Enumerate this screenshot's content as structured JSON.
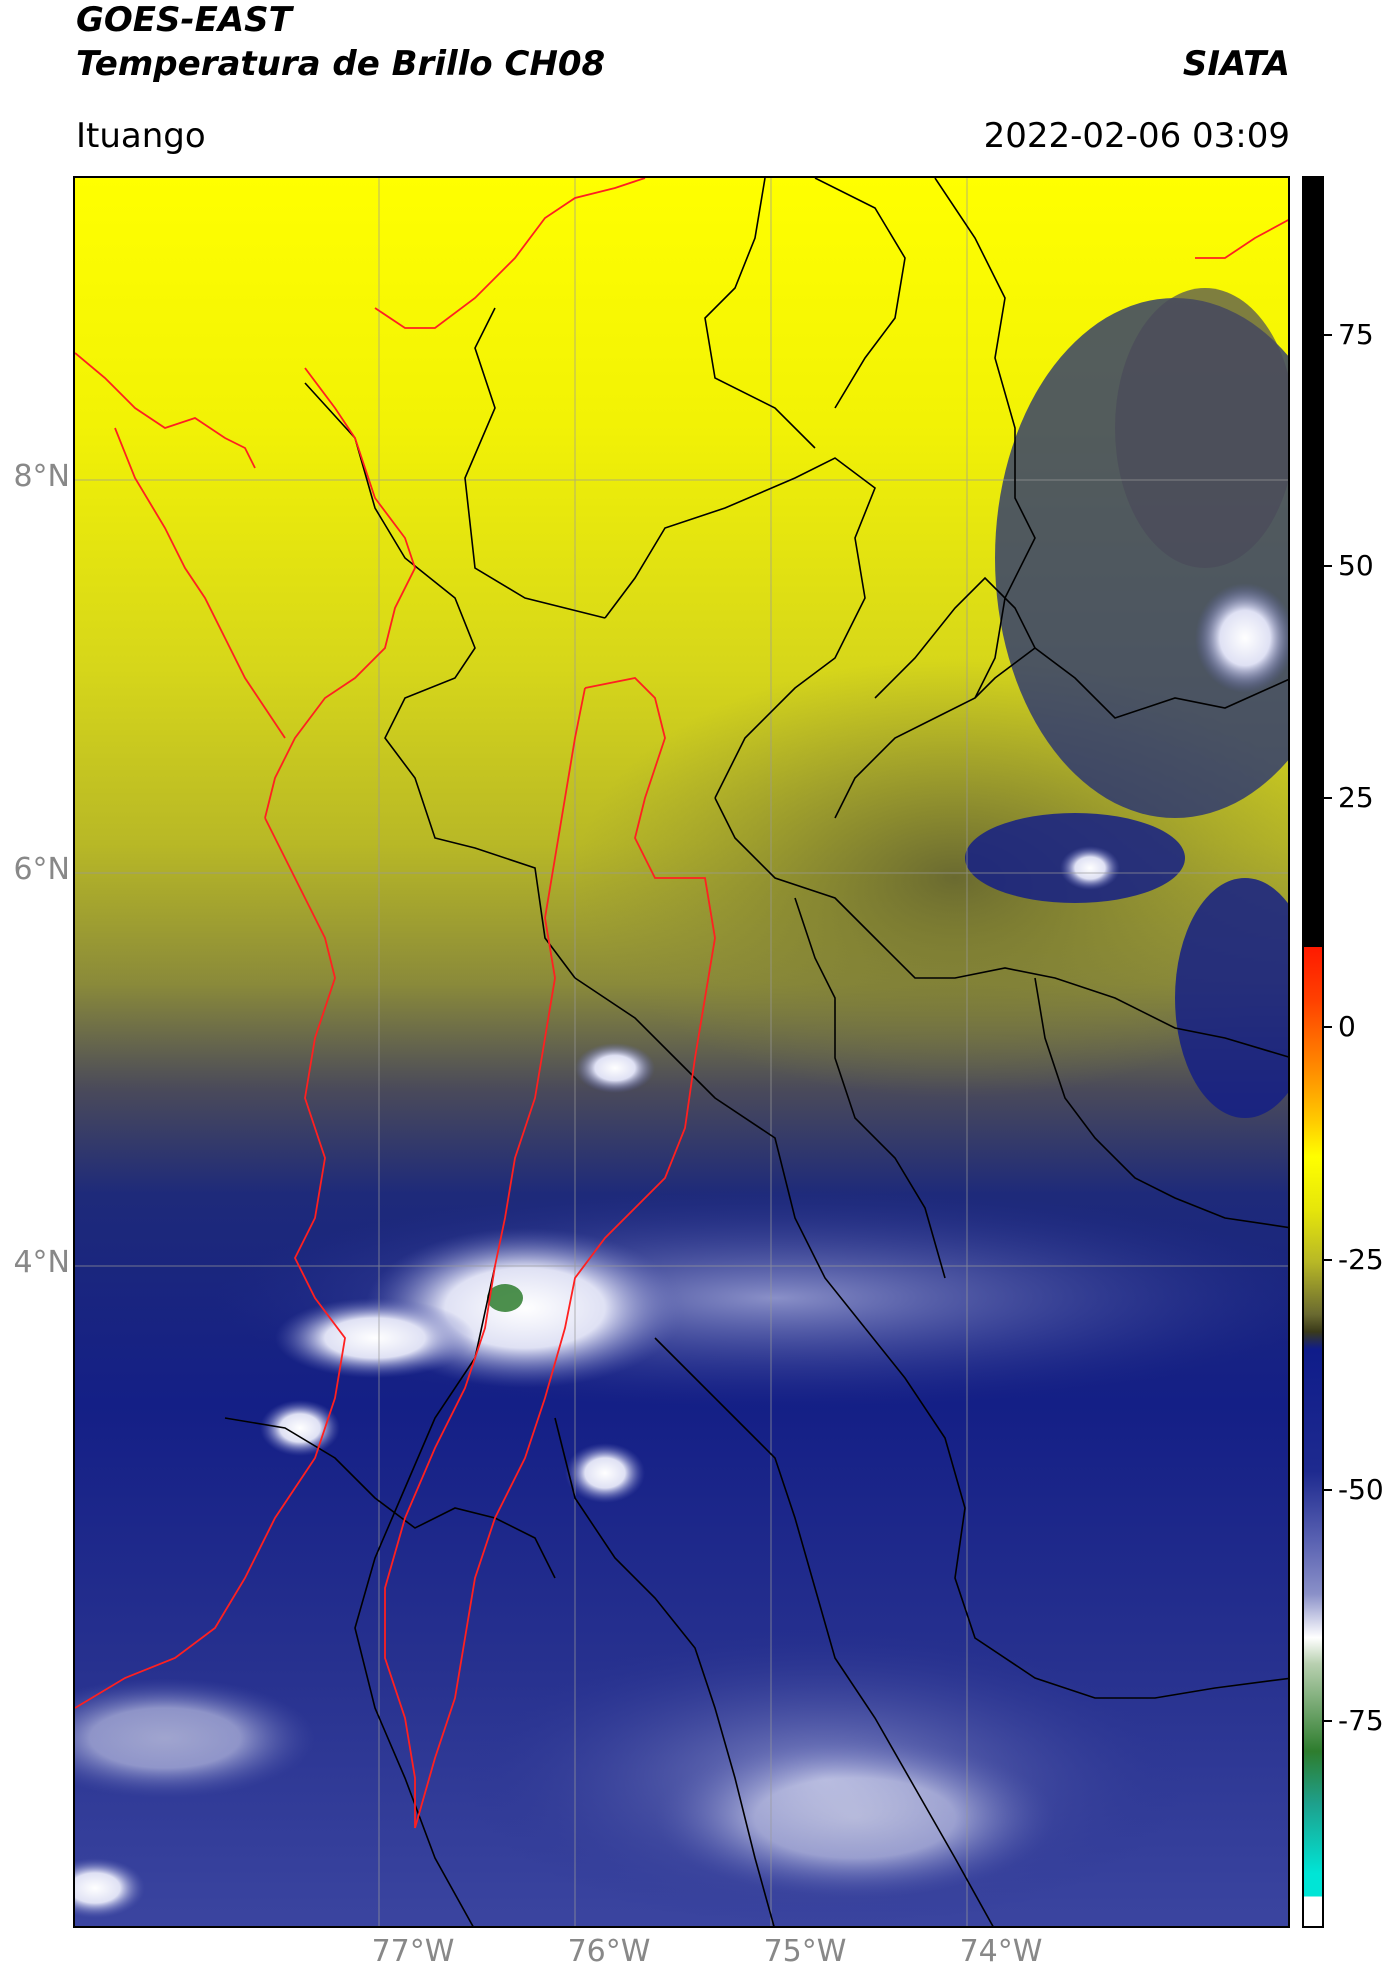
{
  "header": {
    "title": "GOES-EAST",
    "subtitle": "Temperatura de Brillo CH08",
    "org": "SIATA",
    "location": "Ituango",
    "datetime": "2022-02-06 03:09"
  },
  "map": {
    "lat_labels": [
      "8°N",
      "6°N",
      "4°N"
    ],
    "lon_labels": [
      "77°W",
      "76°W",
      "75°W",
      "74°W"
    ],
    "colors": {
      "boundary": "#000000",
      "coast": "#ff2020",
      "grid": "#999999"
    }
  },
  "colorbar": {
    "labels": [
      "75",
      "50",
      "25",
      "0",
      "-25",
      "-50",
      "-75"
    ],
    "colors": {
      "top": "#000000",
      "red": "#ff1a00",
      "orange": "#ff8c00",
      "yellow": "#ffff00",
      "olive": "#3a3a1a",
      "navy": "#0f1c8a",
      "lavender": "#8a90c8",
      "white": "#ffffff",
      "green": "#2e7d2e",
      "cyan": "#00e5d6"
    }
  }
}
